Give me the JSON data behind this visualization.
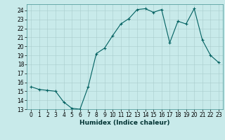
{
  "x": [
    0,
    1,
    2,
    3,
    4,
    5,
    6,
    7,
    8,
    9,
    10,
    11,
    12,
    13,
    14,
    15,
    16,
    17,
    18,
    19,
    20,
    21,
    22,
    23
  ],
  "y": [
    15.5,
    15.2,
    15.1,
    15.0,
    13.8,
    13.1,
    13.0,
    15.5,
    19.2,
    19.8,
    21.2,
    22.5,
    23.1,
    24.1,
    24.2,
    23.8,
    24.1,
    20.4,
    22.8,
    22.5,
    24.2,
    20.7,
    19.0,
    18.2
  ],
  "line_color": "#006060",
  "marker_color": "#006060",
  "bg_color": "#c8eaea",
  "grid_color": "#a8cccc",
  "xlabel": "Humidex (Indice chaleur)",
  "xlim": [
    -0.5,
    23.5
  ],
  "ylim": [
    13,
    24.7
  ],
  "yticks": [
    13,
    14,
    15,
    16,
    17,
    18,
    19,
    20,
    21,
    22,
    23,
    24
  ],
  "xticks": [
    0,
    1,
    2,
    3,
    4,
    5,
    6,
    7,
    8,
    9,
    10,
    11,
    12,
    13,
    14,
    15,
    16,
    17,
    18,
    19,
    20,
    21,
    22,
    23
  ],
  "tick_fontsize": 5.5,
  "xlabel_fontsize": 6.5,
  "figsize": [
    3.2,
    2.0
  ],
  "dpi": 100
}
